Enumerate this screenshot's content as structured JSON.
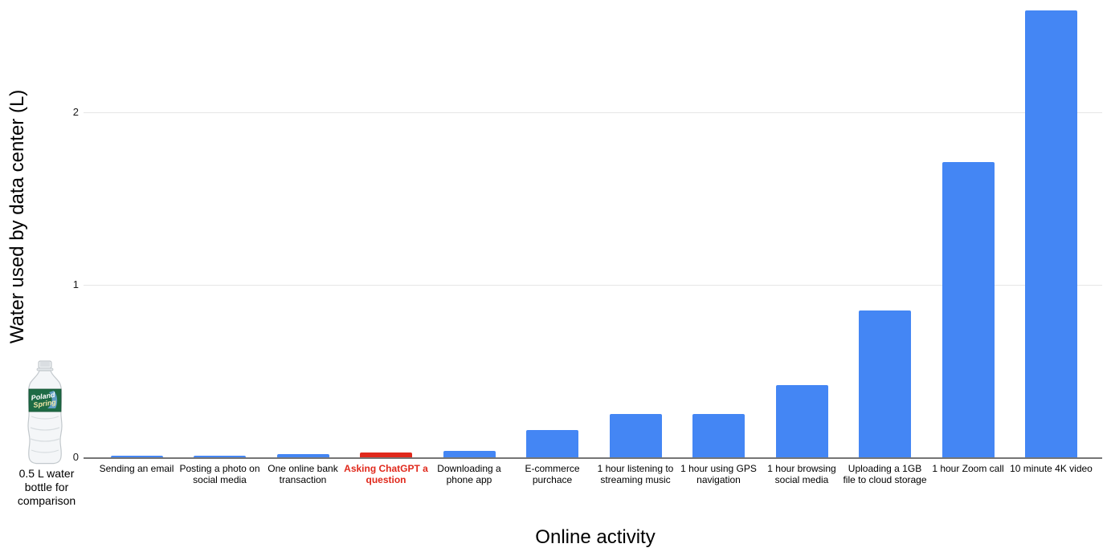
{
  "chart_data": {
    "type": "bar",
    "title": "",
    "xlabel": "Online activity",
    "ylabel": "Water used by data center (L)",
    "ylim": [
      0,
      2.65
    ],
    "y_ticks": [
      0,
      1,
      2
    ],
    "grid": "horizontal",
    "legend": "none",
    "categories": [
      "Sending an email",
      "Posting a photo on social media",
      "One online bank transaction",
      "Asking ChatGPT a question",
      "Downloading a phone app",
      "E-commerce purchace",
      "1 hour listening to streaming music",
      "1 hour using GPS navigation",
      "1 hour browsing social media",
      "Uploading a 1GB file to cloud storage",
      "1 hour Zoom call",
      "10 minute 4K video"
    ],
    "values": [
      0.01,
      0.008,
      0.02,
      0.03,
      0.035,
      0.16,
      0.25,
      0.25,
      0.42,
      0.85,
      1.71,
      2.59
    ],
    "highlight_index": 3,
    "bar_color": "#4486f4",
    "highlight_color": "#e0291c"
  },
  "annotation": {
    "caption_line1": "0.5 L water",
    "caption_line2": "bottle for",
    "caption_line3": "comparison",
    "bottle_brand_line1": "Poland",
    "bottle_brand_line2": "Spring"
  },
  "colors": {
    "gridline": "#e6e6e6",
    "axis_line": "#757575",
    "text": "#000000",
    "highlight_text": "#e0291c",
    "bottle_label_green": "#1e6b45"
  }
}
